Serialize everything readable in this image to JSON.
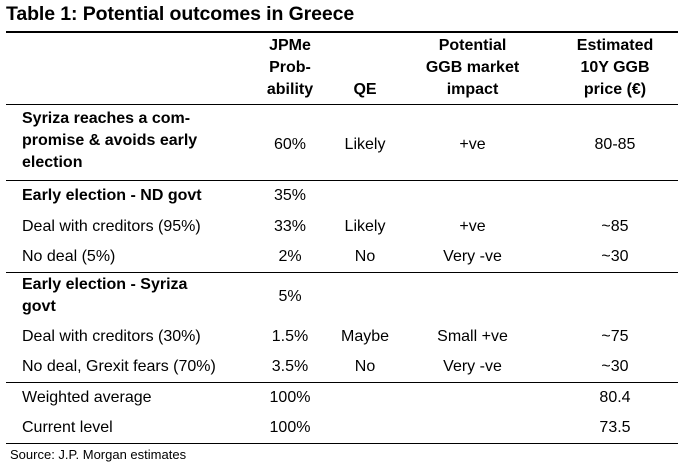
{
  "title": "Table 1: Potential outcomes in Greece",
  "headers": {
    "probability": [
      "JPMe",
      "Prob-",
      "ability"
    ],
    "qe": "QE",
    "impact": [
      "Potential",
      "GGB market",
      "impact"
    ],
    "price": [
      "Estimated",
      "10Y GGB",
      "price (€)"
    ]
  },
  "rows": {
    "syriza_compromise": {
      "label": [
        "Syriza reaches a com-",
        "promise & avoids early",
        "election"
      ],
      "probability": "60%",
      "qe": "Likely",
      "impact": "+ve",
      "price": "80-85"
    },
    "nd_govt": {
      "label": "Early election - ND govt",
      "probability": "35%"
    },
    "nd_deal": {
      "label": "Deal with creditors (95%)",
      "probability": "33%",
      "qe": "Likely",
      "impact": "+ve",
      "price": "~85"
    },
    "nd_no_deal": {
      "label": "No deal (5%)",
      "probability": "2%",
      "qe": "No",
      "impact": "Very -ve",
      "price": "~30"
    },
    "syriza_govt": {
      "label": [
        "Early election - Syriza",
        "govt"
      ],
      "probability": "5%"
    },
    "syriza_deal": {
      "label": "Deal with creditors (30%)",
      "probability": "1.5%",
      "qe": "Maybe",
      "impact": "Small +ve",
      "price": "~75"
    },
    "syriza_no_deal": {
      "label": "No deal, Grexit fears (70%)",
      "probability": "3.5%",
      "qe": "No",
      "impact": "Very -ve",
      "price": "~30"
    },
    "weighted_average": {
      "label": "Weighted average",
      "probability": "100%",
      "price": "80.4"
    },
    "current_level": {
      "label": "Current level",
      "probability": "100%",
      "price": "73.5"
    }
  },
  "source": "Source: J.P. Morgan estimates"
}
